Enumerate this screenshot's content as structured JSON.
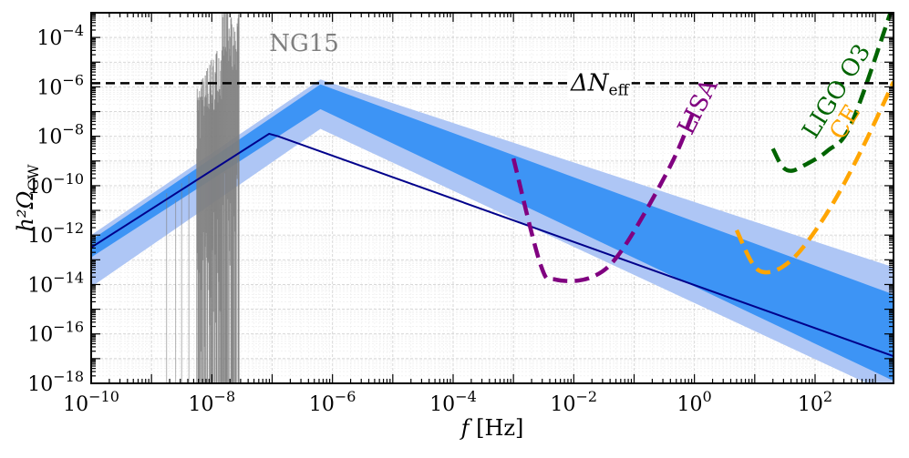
{
  "chart_data": {
    "type": "line",
    "title": "",
    "xlabel": "f [Hz]",
    "ylabel": "h²Ω_GW",
    "x_scale": "log",
    "y_scale": "log",
    "xlim_log10": [
      -10,
      3.3
    ],
    "ylim_log10": [
      -18,
      -3
    ],
    "x_major_ticks_log10": [
      -10,
      -8,
      -6,
      -4,
      -2,
      0,
      2
    ],
    "y_major_ticks_log10": [
      -18,
      -16,
      -14,
      -12,
      -10,
      -8,
      -6,
      -4
    ],
    "x_tick_labels": [
      "10^-10",
      "10^-8",
      "10^-6",
      "10^-4",
      "10^-2",
      "10^0",
      "10^2"
    ],
    "y_tick_labels": [
      "10^-18",
      "10^-16",
      "10^-14",
      "10^-12",
      "10^-10",
      "10^-8",
      "10^-6",
      "10^-4"
    ],
    "grid": true,
    "series": [
      {
        "name": "signal outer band",
        "color": "#aec6f5",
        "upper_log10": [
          [
            -10,
            -12.0
          ],
          [
            -6.2,
            -5.7
          ],
          [
            3.3,
            -13.3
          ]
        ],
        "lower_log10": [
          [
            -10,
            -14.1
          ],
          [
            -6.2,
            -7.7
          ],
          [
            3.3,
            -18.5
          ]
        ]
      },
      {
        "name": "signal inner band",
        "color": "#3d94f5",
        "upper_log10": [
          [
            -10,
            -12.2
          ],
          [
            -6.2,
            -5.9
          ],
          [
            3.3,
            -14.4
          ]
        ],
        "lower_log10": [
          [
            -10,
            -12.9
          ],
          [
            -6.2,
            -6.9
          ],
          [
            3.3,
            -17.9
          ]
        ]
      },
      {
        "name": "signal central",
        "color": "#00008b",
        "points_log10": [
          [
            -10,
            -12.5
          ],
          [
            -7.05,
            -7.9
          ],
          [
            -6.9,
            -8.0
          ],
          [
            3.3,
            -16.9
          ]
        ]
      },
      {
        "name": "LISA",
        "label": "LISA",
        "color": "#800080",
        "points_log10": [
          [
            -3,
            -8.9
          ],
          [
            -2.55,
            -13.2
          ],
          [
            -2.3,
            -13.8
          ],
          [
            -1.7,
            -13.7
          ],
          [
            -1.2,
            -12.6
          ],
          [
            -0.4,
            -9.2
          ],
          [
            0,
            -6.9
          ]
        ]
      },
      {
        "name": "LIGO O3",
        "label": "LIGO O3",
        "color": "#006400",
        "points_log10": [
          [
            1.3,
            -8.5
          ],
          [
            1.45,
            -9.2
          ],
          [
            1.6,
            -9.4
          ],
          [
            1.8,
            -9.2
          ],
          [
            2.2,
            -8.6
          ],
          [
            2.6,
            -7.5
          ],
          [
            3.25,
            -3.0
          ]
        ]
      },
      {
        "name": "CE",
        "label": "CE",
        "color": "#ffa500",
        "points_log10": [
          [
            0.7,
            -11.8
          ],
          [
            0.95,
            -13.1
          ],
          [
            1.15,
            -13.5
          ],
          [
            1.45,
            -13.3
          ],
          [
            1.8,
            -12.5
          ],
          [
            2.3,
            -10.7
          ],
          [
            2.8,
            -8.4
          ],
          [
            3.3,
            -5.8
          ]
        ]
      },
      {
        "name": "ΔN_eff",
        "label": "ΔN_eff",
        "color": "#000000",
        "constant_log10": -5.85
      },
      {
        "name": "NG15",
        "label": "NG15",
        "color": "#7f7f7f",
        "x_range_log10": [
          -8.25,
          -7.55
        ]
      }
    ]
  }
}
